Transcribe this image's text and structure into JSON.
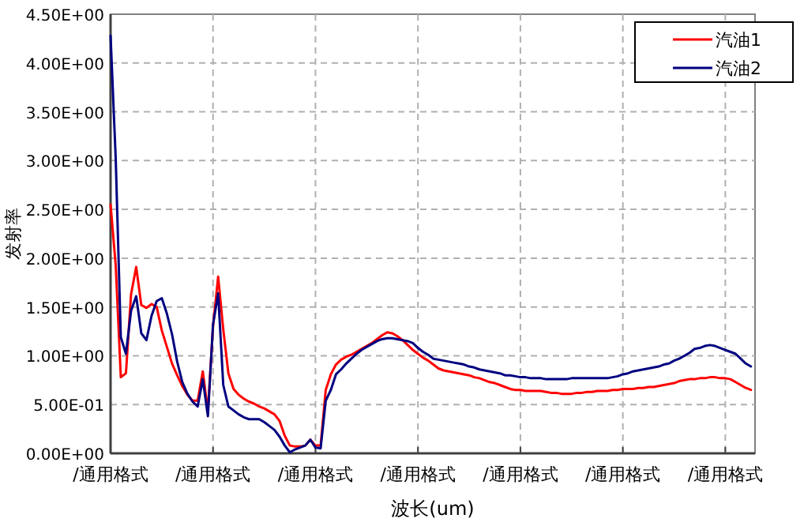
{
  "chart_data": {
    "type": "line",
    "xlabel": "波长(um)",
    "ylabel": "发射率",
    "ylim": [
      0,
      4.5
    ],
    "categories": [
      "/通用格式",
      null,
      null,
      null,
      null,
      null,
      null,
      null,
      null,
      null,
      null,
      null,
      null,
      null,
      null,
      null,
      null,
      null,
      null,
      null,
      "/通用格式",
      null,
      null,
      null,
      null,
      null,
      null,
      null,
      null,
      null,
      null,
      null,
      null,
      null,
      null,
      null,
      null,
      null,
      null,
      null,
      "/通用格式",
      null,
      null,
      null,
      null,
      null,
      null,
      null,
      null,
      null,
      null,
      null,
      null,
      null,
      null,
      null,
      null,
      null,
      null,
      null,
      "/通用格式",
      null,
      null,
      null,
      null,
      null,
      null,
      null,
      null,
      null,
      null,
      null,
      null,
      null,
      null,
      null,
      null,
      null,
      null,
      null,
      "/通用格式",
      null,
      null,
      null,
      null,
      null,
      null,
      null,
      null,
      null,
      null,
      null,
      null,
      null,
      null,
      null,
      null,
      null,
      null,
      null,
      "/通用格式",
      null,
      null,
      null,
      null,
      null,
      null,
      null,
      null,
      null,
      null,
      null,
      null,
      null,
      null,
      null,
      null,
      null,
      null,
      null,
      "/通用格式",
      null,
      null,
      null,
      null,
      null
    ],
    "yticks": [
      {
        "value": 0,
        "label": "0.00E+00"
      },
      {
        "value": 0.5,
        "label": "5.00E-01"
      },
      {
        "value": 1,
        "label": "1.00E+00"
      },
      {
        "value": 1.5,
        "label": "1.50E+00"
      },
      {
        "value": 2,
        "label": "2.00E+00"
      },
      {
        "value": 2.5,
        "label": "2.50E+00"
      },
      {
        "value": 3,
        "label": "3.00E+00"
      },
      {
        "value": 3.5,
        "label": "3.50E+00"
      },
      {
        "value": 4,
        "label": "4.00E+00"
      },
      {
        "value": 4.5,
        "label": "4.50E+00"
      }
    ],
    "grid": true,
    "legend": "top right",
    "marker": "none",
    "line_style": "solid",
    "series": [
      {
        "name": "汽油1",
        "color": "#ff0000",
        "values": [
          2.55,
          1.93,
          0.78,
          0.82,
          1.63,
          1.91,
          1.52,
          1.49,
          1.53,
          1.5,
          1.26,
          1.09,
          0.92,
          0.8,
          0.69,
          0.6,
          0.54,
          0.54,
          0.84,
          0.43,
          1.3,
          1.81,
          1.27,
          0.82,
          0.66,
          0.6,
          0.56,
          0.53,
          0.51,
          0.48,
          0.46,
          0.43,
          0.4,
          0.33,
          0.18,
          0.08,
          0.07,
          0.07,
          0.08,
          0.14,
          0.08,
          0.08,
          0.65,
          0.81,
          0.91,
          0.96,
          0.99,
          1.01,
          1.04,
          1.07,
          1.1,
          1.13,
          1.17,
          1.21,
          1.24,
          1.23,
          1.2,
          1.16,
          1.11,
          1.06,
          1.02,
          0.98,
          0.95,
          0.91,
          0.87,
          0.85,
          0.84,
          0.83,
          0.82,
          0.81,
          0.8,
          0.78,
          0.77,
          0.75,
          0.73,
          0.72,
          0.7,
          0.68,
          0.66,
          0.65,
          0.65,
          0.64,
          0.64,
          0.64,
          0.64,
          0.63,
          0.62,
          0.62,
          0.61,
          0.61,
          0.61,
          0.62,
          0.62,
          0.63,
          0.63,
          0.64,
          0.64,
          0.64,
          0.65,
          0.65,
          0.66,
          0.66,
          0.66,
          0.67,
          0.67,
          0.68,
          0.68,
          0.69,
          0.7,
          0.71,
          0.72,
          0.74,
          0.75,
          0.76,
          0.76,
          0.77,
          0.77,
          0.78,
          0.78,
          0.77,
          0.77,
          0.76,
          0.73,
          0.7,
          0.67,
          0.65
        ]
      },
      {
        "name": "汽油2",
        "color": "#000080",
        "values": [
          4.28,
          3.03,
          1.19,
          1.02,
          1.46,
          1.61,
          1.23,
          1.16,
          1.41,
          1.56,
          1.59,
          1.43,
          1.22,
          0.94,
          0.73,
          0.61,
          0.53,
          0.48,
          0.76,
          0.38,
          1.32,
          1.64,
          0.7,
          0.48,
          0.44,
          0.4,
          0.37,
          0.35,
          0.35,
          0.35,
          0.32,
          0.28,
          0.24,
          0.17,
          0.08,
          0.01,
          0.04,
          0.06,
          0.08,
          0.14,
          0.06,
          0.05,
          0.54,
          0.65,
          0.81,
          0.86,
          0.92,
          0.97,
          1.02,
          1.06,
          1.09,
          1.12,
          1.15,
          1.17,
          1.18,
          1.18,
          1.17,
          1.16,
          1.15,
          1.13,
          1.08,
          1.04,
          1.01,
          0.97,
          0.96,
          0.95,
          0.94,
          0.93,
          0.92,
          0.91,
          0.89,
          0.88,
          0.86,
          0.85,
          0.84,
          0.83,
          0.82,
          0.8,
          0.8,
          0.79,
          0.78,
          0.78,
          0.77,
          0.77,
          0.77,
          0.76,
          0.76,
          0.76,
          0.76,
          0.76,
          0.77,
          0.77,
          0.77,
          0.77,
          0.77,
          0.77,
          0.77,
          0.77,
          0.78,
          0.79,
          0.81,
          0.82,
          0.84,
          0.85,
          0.86,
          0.87,
          0.88,
          0.89,
          0.91,
          0.92,
          0.95,
          0.97,
          1.0,
          1.03,
          1.07,
          1.08,
          1.1,
          1.11,
          1.1,
          1.08,
          1.06,
          1.04,
          1.02,
          0.97,
          0.92,
          0.89
        ]
      }
    ]
  }
}
